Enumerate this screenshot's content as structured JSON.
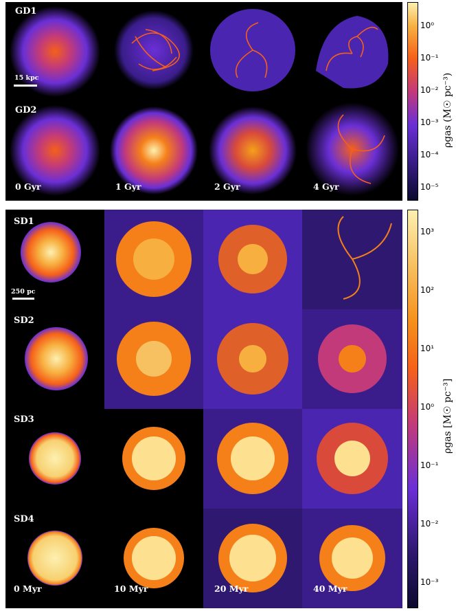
{
  "top_panel": {
    "rows": [
      "GD1",
      "GD2"
    ],
    "times": [
      "0 Gyr",
      "1 Gyr",
      "2 Gyr",
      "4 Gyr"
    ],
    "scale_bar": "15 kpc",
    "colorbar": {
      "label": "ρgas (M☉ pc⁻³)",
      "ticks": [
        "10⁰",
        "10⁻¹",
        "10⁻²",
        "10⁻³",
        "10⁻⁴",
        "10⁻⁵"
      ]
    }
  },
  "bottom_panel": {
    "rows": [
      "SD1",
      "SD2",
      "SD3",
      "SD4"
    ],
    "times": [
      "0 Myr",
      "10 Myr",
      "20 Myr",
      "40 Myr"
    ],
    "scale_bar": "250 pc",
    "colorbar": {
      "label": "ρgas [M☉ pc⁻³]",
      "ticks": [
        "10³",
        "10²",
        "10¹",
        "10⁰",
        "10⁻¹",
        "10⁻²",
        "10⁻³"
      ]
    }
  },
  "colors": {
    "low": "#0b0a2e",
    "mid_purple": "#6a2fd6",
    "orange": "#f5601a",
    "high": "#fdf0b0"
  }
}
